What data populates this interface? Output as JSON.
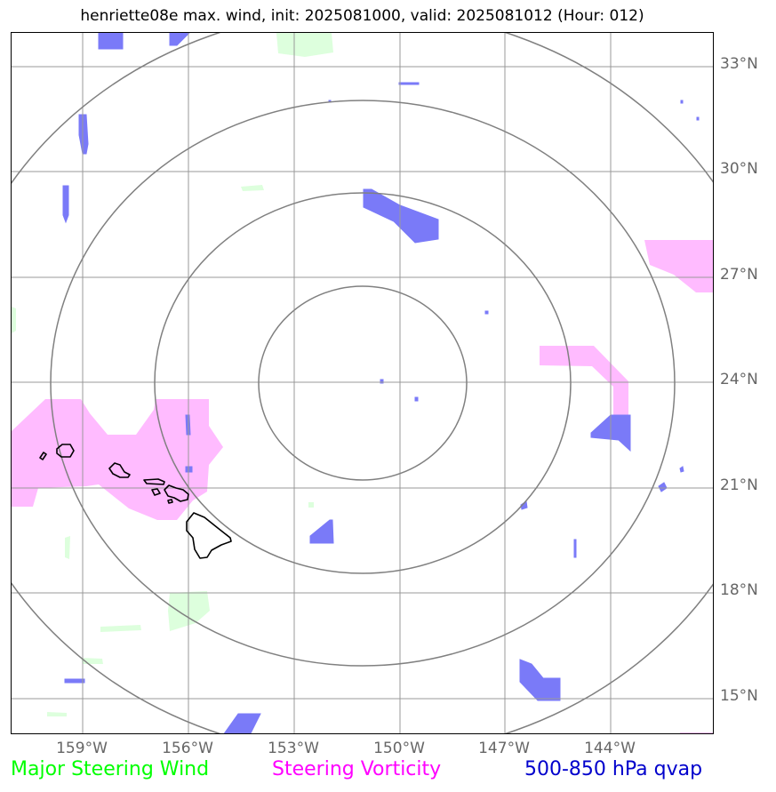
{
  "title": "henriette08e max. wind, init: 2025081000, valid: 2025081012 (Hour: 012)",
  "lat_labels": [
    "33°N",
    "30°N",
    "27°N",
    "24°N",
    "21°N",
    "18°N",
    "15°N"
  ],
  "lon_labels": [
    "159°W",
    "156°W",
    "153°W",
    "150°W",
    "147°W",
    "144°W"
  ],
  "legend": {
    "wind": "Major Steering Wind",
    "vorticity": "Steering Vorticity",
    "qvap": "500-850 hPa qvap"
  },
  "colors": {
    "wind_text": "#00ff00",
    "vorticity_text": "#ff00ff",
    "qvap_text": "#0000cc",
    "wind_fill": "#ddffdd",
    "vorticity_fill": "#ffbbff",
    "qvap_fill": "#7a7af8",
    "grid": "#999999",
    "rings": "#808080",
    "coast": "#000000"
  }
}
